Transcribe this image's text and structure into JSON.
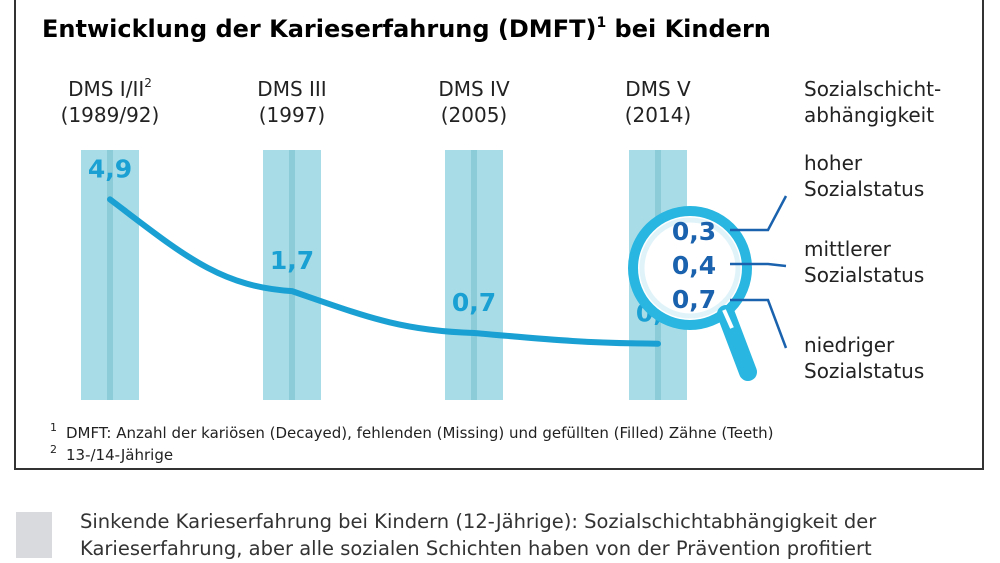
{
  "chart_data": {
    "type": "line",
    "title": "Entwicklung der Karieserfahrung (DMFT)",
    "title_sup": "1",
    "title_suffix": " bei Kindern",
    "categories": [
      {
        "line1": "DMS I/II",
        "sup": "2",
        "line2": "(1989/92)"
      },
      {
        "line1": "DMS III",
        "sup": "",
        "line2": "(1997)"
      },
      {
        "line1": "DMS IV",
        "sup": "",
        "line2": "(2005)"
      },
      {
        "line1": "DMS V",
        "sup": "",
        "line2": "(2014)"
      }
    ],
    "values": [
      4.9,
      1.7,
      0.7,
      0.5
    ],
    "value_labels": [
      "4,9",
      "1,7",
      "0,7",
      "0,5"
    ],
    "ylim": [
      0,
      5
    ],
    "line_color": "#1aa0d2",
    "column_color": "#a8dde8",
    "column_center_color": "#8ccbd8",
    "magnifier": {
      "header_line1": "Sozialschicht-",
      "header_line2": "abhängigkeit",
      "color": "#29b6e0",
      "groups": [
        {
          "value": 0.3,
          "value_label": "0,3",
          "line1": "hoher",
          "line2": "Sozialstatus"
        },
        {
          "value": 0.4,
          "value_label": "0,4",
          "line1": "mittlerer",
          "line2": "Sozialstatus"
        },
        {
          "value": 0.7,
          "value_label": "0,7",
          "line1": "niedriger",
          "line2": "Sozialstatus"
        }
      ]
    },
    "footnotes": [
      {
        "mark": "1",
        "text": "DMFT: Anzahl der kariösen (Decayed), fehlenden (Missing) und gefüllten (Filled) Zähne (Teeth)"
      },
      {
        "mark": "2",
        "text": "13-/14-Jährige"
      }
    ]
  },
  "caption": {
    "line1": "Sinkende Karieserfahrung bei Kindern (12-Jährige): Sozialschichtabhängigkeit der",
    "line2": "Karieserfahrung, aber alle sozialen Schichten haben von der Prävention profitiert"
  }
}
